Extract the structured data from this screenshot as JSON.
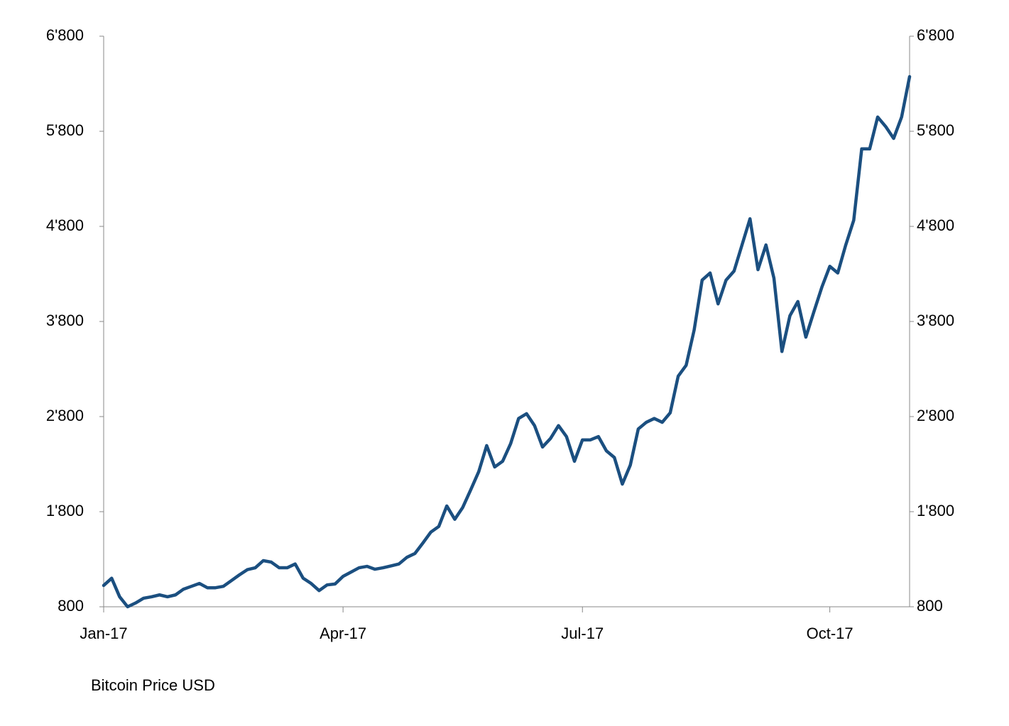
{
  "chart_data": {
    "type": "line",
    "categories": [
      "Jan-17",
      null,
      null,
      null,
      null,
      null,
      null,
      null,
      null,
      null,
      null,
      null,
      null,
      null,
      null,
      null,
      null,
      null,
      null,
      null,
      null,
      null,
      null,
      null,
      null,
      null,
      null,
      null,
      null,
      null,
      "Apr-17",
      null,
      null,
      null,
      null,
      null,
      null,
      null,
      null,
      null,
      null,
      null,
      null,
      null,
      null,
      null,
      null,
      null,
      null,
      null,
      null,
      null,
      null,
      null,
      null,
      null,
      null,
      null,
      null,
      null,
      "Jul-17",
      null,
      null,
      null,
      null,
      null,
      null,
      null,
      null,
      null,
      null,
      null,
      null,
      null,
      null,
      null,
      null,
      null,
      null,
      null,
      null,
      null,
      null,
      null,
      null,
      null,
      null,
      null,
      null,
      null,
      null,
      "Oct-17",
      null,
      null,
      null,
      null,
      null,
      null,
      null,
      null,
      null,
      null
    ],
    "series": [
      {
        "name": "Bitcoin Price USD",
        "color": "#1b4f80",
        "values": [
          1024,
          1100,
          905,
          800,
          840,
          890,
          905,
          925,
          905,
          925,
          985,
          1015,
          1045,
          1000,
          1000,
          1015,
          1075,
          1135,
          1190,
          1210,
          1285,
          1270,
          1210,
          1210,
          1250,
          1100,
          1045,
          970,
          1030,
          1040,
          1120,
          1165,
          1210,
          1225,
          1195,
          1210,
          1230,
          1250,
          1320,
          1360,
          1470,
          1585,
          1645,
          1860,
          1720,
          1845,
          2030,
          2220,
          2495,
          2270,
          2330,
          2515,
          2780,
          2830,
          2705,
          2480,
          2570,
          2705,
          2590,
          2330,
          2555,
          2555,
          2590,
          2440,
          2370,
          2090,
          2290,
          2670,
          2740,
          2780,
          2740,
          2840,
          3225,
          3340,
          3710,
          4235,
          4310,
          3985,
          4235,
          4330,
          4605,
          4880,
          4345,
          4605,
          4255,
          3485,
          3860,
          4010,
          3635,
          3900,
          4160,
          4380,
          4310,
          4605,
          4865,
          5615,
          5615,
          5950,
          5850,
          5725,
          5950,
          6375
        ]
      }
    ],
    "ylim": [
      800,
      6800
    ],
    "yticks": [
      800,
      {
        "value": 1800,
        "label": "1'800"
      },
      {
        "value": 2800,
        "label": "2'800"
      },
      {
        "value": 3800,
        "label": "3'800"
      },
      {
        "value": 4800,
        "label": "4'800"
      },
      {
        "value": 5800,
        "label": "5'800"
      },
      {
        "value": 6800,
        "label": "6'800"
      }
    ],
    "y2lim": [
      800,
      6800
    ],
    "y2ticks": [
      800,
      {
        "value": 1800,
        "label": "1'800"
      },
      {
        "value": 2800,
        "label": "2'800"
      },
      {
        "value": 3800,
        "label": "3'800"
      },
      {
        "value": 4800,
        "label": "4'800"
      },
      {
        "value": 5800,
        "label": "5'800"
      },
      {
        "value": 6800,
        "label": "6'800"
      }
    ],
    "grid": false
  }
}
